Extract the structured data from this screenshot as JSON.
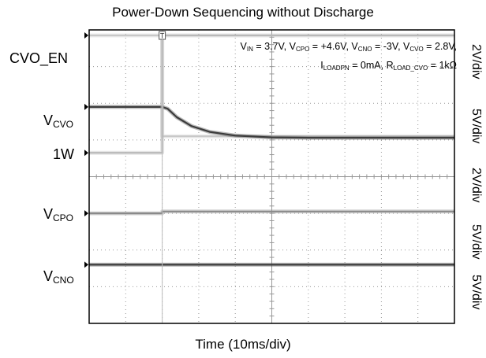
{
  "chart_data": {
    "type": "line",
    "title": "Power-Down Sequencing without Discharge",
    "xlabel": "Time (10ms/div)",
    "x_divisions": 10,
    "y_divisions": 8,
    "trigger_marker": "T",
    "annotation": {
      "line1": "V_IN = 3.7V, V_CPO = +4.6V, V_CNO = -3V, V_CVO = 2.8V,",
      "line2": "I_LOADPN = 0mA, R_LOAD_CVO = 1kΩ"
    },
    "channels": [
      {
        "name": "CVO_EN",
        "scale": "2V/div",
        "color": "#c8c8c8"
      },
      {
        "name": "V_CVO",
        "scale": "5V/div",
        "color": "#3c3c3c"
      },
      {
        "name": "1W",
        "scale": "2V/div",
        "color": "#b8b8b8"
      },
      {
        "name": "V_CPO",
        "scale": "5V/div",
        "color": "#8a8a8a"
      },
      {
        "name": "V_CNO",
        "scale": "5V/div",
        "color": "#3c3c3c"
      }
    ],
    "series": [
      {
        "name": "CVO_EN",
        "x_div": [
          0,
          2.0,
          2.0,
          10
        ],
        "y_div": [
          7.85,
          7.85,
          5.1,
          5.1
        ]
      },
      {
        "name": "V_CVO",
        "x_div": [
          0,
          2.0,
          2.15,
          2.4,
          2.8,
          3.3,
          4.0,
          5.0,
          6.0,
          10
        ],
        "y_div": [
          5.9,
          5.9,
          5.85,
          5.62,
          5.38,
          5.22,
          5.12,
          5.07,
          5.06,
          5.06
        ]
      },
      {
        "name": "1W",
        "x_div": [
          0,
          2.0,
          2.0,
          10
        ],
        "y_div": [
          4.65,
          4.65,
          7.85,
          7.85
        ]
      },
      {
        "name": "V_CPO",
        "x_div": [
          0,
          2.0,
          2.0,
          10
        ],
        "y_div": [
          3.0,
          3.0,
          3.05,
          3.05
        ]
      },
      {
        "name": "V_CNO",
        "x_div": [
          0,
          10
        ],
        "y_div": [
          1.6,
          1.6
        ]
      }
    ]
  },
  "labels": {
    "cvo_en": "CVO_EN",
    "vcvo_main": "V",
    "vcvo_sub": "CVO",
    "w1": "1W",
    "vcpo_main": "V",
    "vcpo_sub": "CPO",
    "vcno_main": "V",
    "vcno_sub": "CNO"
  },
  "scales": {
    "s1": "2V/div",
    "s2": "5V/div",
    "s3": "2V/div",
    "s4": "5V/div",
    "s5": "5V/div"
  },
  "annot": {
    "vin_main": "V",
    "vin_sub": "IN",
    "vin_val": " = 3.7V, ",
    "cpo_main": "V",
    "cpo_sub": "CPO",
    "cpo_val": " = +4.6V, ",
    "cno_main": "V",
    "cno_sub": "CNO",
    "cno_val": " = -3V, ",
    "cvo_main": "V",
    "cvo_sub": "CVO",
    "cvo_val": " = 2.8V,",
    "il_main": "I",
    "il_sub": "LOADPN",
    "il_val": " = 0mA, ",
    "rl_main": "R",
    "rl_sub": "LOAD_CVO",
    "rl_val": " = 1kΩ"
  }
}
